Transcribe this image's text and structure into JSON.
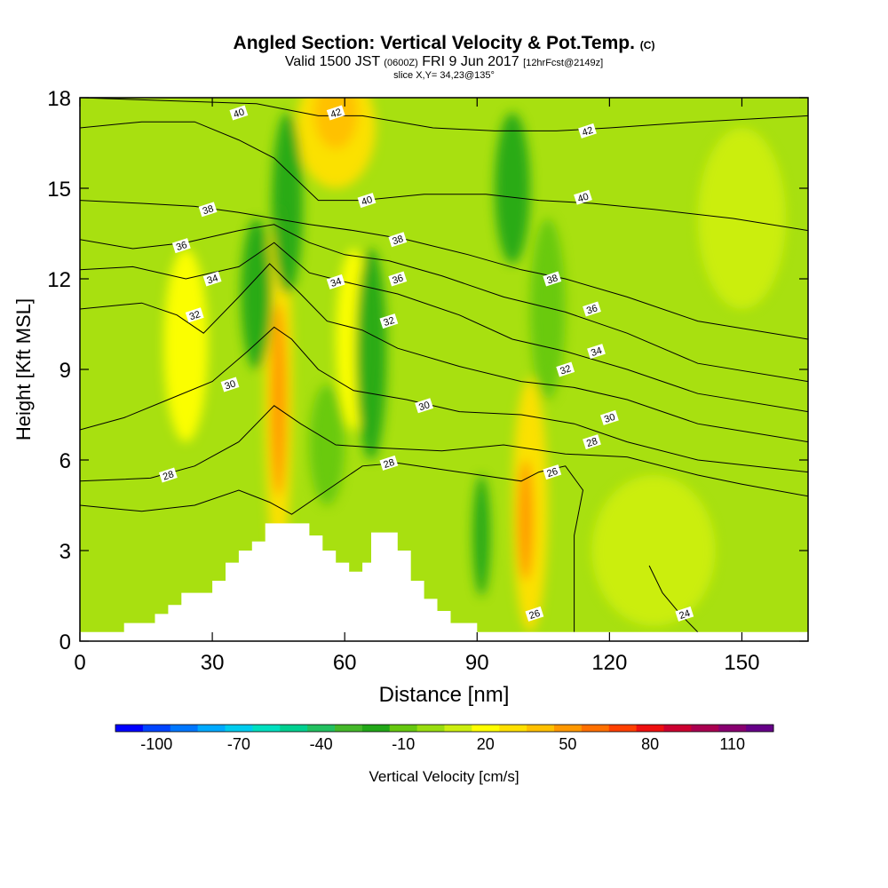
{
  "title": {
    "main": "Angled Section: Vertical Velocity & Pot.Temp.",
    "mark": "(C)"
  },
  "subtitle": {
    "a": "Valid 1500 JST",
    "b": "(0600Z)",
    "c": "FRI 9 Jun 2017",
    "d": "[12hrFcst@2149z]"
  },
  "slice_label": "slice X,Y= 34,23@135°",
  "chart_data": {
    "type": "heatmap",
    "xlabel": "Distance [nm]",
    "ylabel": "Height [Kft MSL]",
    "xlim": [
      0,
      165
    ],
    "ylim": [
      0,
      18
    ],
    "xticks": [
      0,
      30,
      60,
      90,
      120,
      150
    ],
    "yticks": [
      0,
      3,
      6,
      9,
      12,
      15,
      18
    ],
    "colorbar": {
      "label": "Vertical Velocity [cm/s]",
      "tick_values": [
        -100,
        -70,
        -40,
        -10,
        20,
        50,
        80,
        110
      ],
      "colors": [
        "#0000ff",
        "#0044ff",
        "#0077ff",
        "#00aaff",
        "#00ccee",
        "#00e0c0",
        "#00d090",
        "#22c060",
        "#44b82a",
        "#22a818",
        "#66c810",
        "#99dd10",
        "#ccee10",
        "#ffff00",
        "#ffe000",
        "#ffc000",
        "#ff9800",
        "#ff7000",
        "#ff4000",
        "#ee1010",
        "#cc0030",
        "#aa0050",
        "#880070",
        "#660088"
      ]
    },
    "terrain": [
      [
        0,
        0.3
      ],
      [
        10,
        0.3
      ],
      [
        10,
        0.6
      ],
      [
        17,
        0.6
      ],
      [
        17,
        0.9
      ],
      [
        20,
        0.9
      ],
      [
        20,
        1.2
      ],
      [
        23,
        1.2
      ],
      [
        23,
        1.6
      ],
      [
        30,
        1.6
      ],
      [
        30,
        2.0
      ],
      [
        33,
        2.0
      ],
      [
        33,
        2.6
      ],
      [
        36,
        2.6
      ],
      [
        36,
        3.0
      ],
      [
        39,
        3.0
      ],
      [
        39,
        3.3
      ],
      [
        42,
        3.3
      ],
      [
        42,
        3.9
      ],
      [
        52,
        3.9
      ],
      [
        52,
        3.5
      ],
      [
        55,
        3.5
      ],
      [
        55,
        3.0
      ],
      [
        58,
        3.0
      ],
      [
        58,
        2.6
      ],
      [
        61,
        2.6
      ],
      [
        61,
        2.3
      ],
      [
        64,
        2.3
      ],
      [
        64,
        2.6
      ],
      [
        66,
        2.6
      ],
      [
        66,
        3.6
      ],
      [
        72,
        3.6
      ],
      [
        72,
        3.0
      ],
      [
        75,
        3.0
      ],
      [
        75,
        2.0
      ],
      [
        78,
        2.0
      ],
      [
        78,
        1.4
      ],
      [
        81,
        1.4
      ],
      [
        81,
        1.0
      ],
      [
        84,
        1.0
      ],
      [
        84,
        0.6
      ],
      [
        90,
        0.6
      ],
      [
        90,
        0.3
      ],
      [
        165,
        0.3
      ]
    ],
    "theta_contours": [
      {
        "label": "24",
        "points": [
          [
            129,
            2.5
          ],
          [
            132,
            1.6
          ],
          [
            136,
            0.9
          ],
          [
            140,
            0.3
          ]
        ],
        "label_at": [
          137,
          0.9
        ]
      },
      {
        "label": "26",
        "points": [
          [
            0,
            4.5
          ],
          [
            14,
            4.3
          ],
          [
            26,
            4.5
          ],
          [
            36,
            5.0
          ],
          [
            43,
            4.6
          ],
          [
            48,
            4.2
          ],
          [
            56,
            5.0
          ],
          [
            64,
            5.8
          ],
          [
            72,
            5.9
          ],
          [
            86,
            5.6
          ],
          [
            100,
            5.3
          ],
          [
            104,
            5.6
          ],
          [
            110,
            5.8
          ],
          [
            114,
            5.0
          ],
          [
            112,
            3.5
          ],
          [
            112,
            2.5
          ],
          [
            112,
            1.2
          ],
          [
            112,
            0.3
          ]
        ],
        "label_at": [
          107,
          5.6
        ]
      },
      {
        "label": "28",
        "points": [
          [
            0,
            5.3
          ],
          [
            16,
            5.4
          ],
          [
            26,
            5.8
          ],
          [
            36,
            6.6
          ],
          [
            44,
            7.8
          ],
          [
            50,
            7.2
          ],
          [
            58,
            6.5
          ],
          [
            68,
            6.4
          ],
          [
            82,
            6.3
          ],
          [
            96,
            6.5
          ],
          [
            110,
            6.2
          ],
          [
            124,
            6.1
          ],
          [
            140,
            5.5
          ],
          [
            150,
            5.2
          ],
          [
            165,
            4.8
          ]
        ],
        "label_at": [
          116,
          6.6
        ]
      },
      {
        "label": "30",
        "points": [
          [
            0,
            7.0
          ],
          [
            10,
            7.4
          ],
          [
            20,
            8.0
          ],
          [
            30,
            8.6
          ],
          [
            38,
            9.6
          ],
          [
            44,
            10.4
          ],
          [
            48,
            10.0
          ],
          [
            54,
            9.0
          ],
          [
            62,
            8.3
          ],
          [
            74,
            8.0
          ],
          [
            86,
            7.6
          ],
          [
            100,
            7.5
          ],
          [
            112,
            7.2
          ],
          [
            124,
            6.6
          ],
          [
            140,
            6.0
          ],
          [
            165,
            5.6
          ]
        ],
        "label_at": [
          120,
          7.4
        ]
      },
      {
        "label": "32",
        "points": [
          [
            0,
            11.0
          ],
          [
            14,
            11.2
          ],
          [
            22,
            10.8
          ],
          [
            28,
            10.2
          ],
          [
            36,
            11.4
          ],
          [
            43,
            12.5
          ],
          [
            50,
            11.5
          ],
          [
            56,
            10.6
          ],
          [
            64,
            10.3
          ],
          [
            72,
            9.7
          ],
          [
            86,
            9.1
          ],
          [
            100,
            8.6
          ],
          [
            112,
            8.4
          ],
          [
            124,
            8.0
          ],
          [
            140,
            7.2
          ],
          [
            165,
            6.6
          ]
        ],
        "label_at": [
          110,
          9.0
        ]
      },
      {
        "label": "34",
        "points": [
          [
            0,
            12.3
          ],
          [
            12,
            12.4
          ],
          [
            24,
            12.0
          ],
          [
            36,
            12.4
          ],
          [
            44,
            13.2
          ],
          [
            52,
            12.2
          ],
          [
            60,
            11.9
          ],
          [
            72,
            11.5
          ],
          [
            86,
            10.8
          ],
          [
            98,
            10.0
          ],
          [
            110,
            9.6
          ],
          [
            124,
            9.0
          ],
          [
            140,
            8.2
          ],
          [
            165,
            7.6
          ]
        ],
        "label_at": [
          117,
          9.6
        ]
      },
      {
        "label": "36",
        "points": [
          [
            0,
            13.3
          ],
          [
            12,
            13.0
          ],
          [
            24,
            13.2
          ],
          [
            36,
            13.6
          ],
          [
            44,
            13.8
          ],
          [
            52,
            13.2
          ],
          [
            60,
            12.8
          ],
          [
            70,
            12.6
          ],
          [
            82,
            12.1
          ],
          [
            96,
            11.4
          ],
          [
            110,
            10.9
          ],
          [
            124,
            10.2
          ],
          [
            140,
            9.2
          ],
          [
            165,
            8.6
          ]
        ],
        "label_at": [
          116,
          11.0
        ]
      },
      {
        "label": "38",
        "points": [
          [
            0,
            14.6
          ],
          [
            14,
            14.5
          ],
          [
            26,
            14.4
          ],
          [
            36,
            14.2
          ],
          [
            44,
            14.0
          ],
          [
            52,
            13.8
          ],
          [
            62,
            13.6
          ],
          [
            74,
            13.3
          ],
          [
            88,
            12.8
          ],
          [
            100,
            12.3
          ],
          [
            110,
            12.0
          ],
          [
            124,
            11.4
          ],
          [
            140,
            10.6
          ],
          [
            165,
            10.0
          ]
        ],
        "label_at": [
          107,
          12.0
        ]
      },
      {
        "label": "40",
        "points": [
          [
            0,
            17.0
          ],
          [
            14,
            17.2
          ],
          [
            26,
            17.2
          ],
          [
            36,
            16.6
          ],
          [
            44,
            16.0
          ],
          [
            54,
            14.6
          ],
          [
            64,
            14.6
          ],
          [
            78,
            14.8
          ],
          [
            92,
            14.8
          ],
          [
            104,
            14.6
          ],
          [
            116,
            14.5
          ],
          [
            130,
            14.3
          ],
          [
            148,
            14.0
          ],
          [
            165,
            13.6
          ]
        ],
        "label_at": [
          114,
          14.7
        ]
      },
      {
        "label": "42",
        "points": [
          [
            0,
            18.0
          ],
          [
            40,
            17.8
          ],
          [
            54,
            17.4
          ],
          [
            64,
            17.4
          ],
          [
            80,
            17.0
          ],
          [
            94,
            16.9
          ],
          [
            108,
            16.9
          ],
          [
            120,
            17.0
          ],
          [
            140,
            17.2
          ],
          [
            165,
            17.4
          ]
        ],
        "label_at": [
          115,
          16.9
        ]
      }
    ],
    "extra_theta_labels": [
      {
        "label": "40",
        "at": [
          36,
          17.5
        ]
      },
      {
        "label": "42",
        "at": [
          58,
          17.5
        ]
      },
      {
        "label": "38",
        "at": [
          29,
          14.3
        ]
      },
      {
        "label": "40",
        "at": [
          65,
          14.6
        ]
      },
      {
        "label": "36",
        "at": [
          23,
          13.1
        ]
      },
      {
        "label": "38",
        "at": [
          72,
          13.3
        ]
      },
      {
        "label": "34",
        "at": [
          30,
          12.0
        ]
      },
      {
        "label": "34",
        "at": [
          58,
          11.9
        ]
      },
      {
        "label": "36",
        "at": [
          72,
          12.0
        ]
      },
      {
        "label": "32",
        "at": [
          26,
          10.8
        ]
      },
      {
        "label": "32",
        "at": [
          70,
          10.6
        ]
      },
      {
        "label": "30",
        "at": [
          34,
          8.5
        ]
      },
      {
        "label": "30",
        "at": [
          78,
          7.8
        ]
      },
      {
        "label": "28",
        "at": [
          20,
          5.5
        ]
      },
      {
        "label": "28",
        "at": [
          70,
          5.9
        ]
      },
      {
        "label": "26",
        "at": [
          103,
          0.9
        ]
      }
    ],
    "velocity_blobs": [
      {
        "cx": 45,
        "cy": 8.5,
        "rx": 3.2,
        "ry": 6.0,
        "value": 30
      },
      {
        "cx": 45,
        "cy": 8.0,
        "rx": 1.8,
        "ry": 3.2,
        "value": 50
      },
      {
        "cx": 58,
        "cy": 17.0,
        "rx": 9.0,
        "ry": 2.0,
        "value": 30
      },
      {
        "cx": 58,
        "cy": 17.5,
        "rx": 5.0,
        "ry": 1.2,
        "value": 40
      },
      {
        "cx": 102,
        "cy": 4.5,
        "rx": 4.0,
        "ry": 4.2,
        "value": 30
      },
      {
        "cx": 101,
        "cy": 4.0,
        "rx": 1.8,
        "ry": 2.0,
        "value": 45
      },
      {
        "cx": 24,
        "cy": 9.8,
        "rx": 5.0,
        "ry": 3.2,
        "value": 20
      },
      {
        "cx": 62,
        "cy": 10.0,
        "rx": 4.0,
        "ry": 3.0,
        "value": 15
      },
      {
        "cx": 40,
        "cy": 11.5,
        "rx": 3.5,
        "ry": 2.5,
        "value": -25
      },
      {
        "cx": 47,
        "cy": 14.5,
        "rx": 3.5,
        "ry": 3.0,
        "value": -25
      },
      {
        "cx": 66,
        "cy": 9.5,
        "rx": 3.5,
        "ry": 3.5,
        "value": -20
      },
      {
        "cx": 56,
        "cy": 6.5,
        "rx": 4.0,
        "ry": 2.0,
        "value": -15
      },
      {
        "cx": 98,
        "cy": 15.0,
        "rx": 4.0,
        "ry": 2.5,
        "value": -25
      },
      {
        "cx": 106,
        "cy": 11.0,
        "rx": 4.0,
        "ry": 3.0,
        "value": -15
      },
      {
        "cx": 91,
        "cy": 3.5,
        "rx": 2.0,
        "ry": 2.0,
        "value": -25
      },
      {
        "cx": 130,
        "cy": 3.0,
        "rx": 14.0,
        "ry": 2.5,
        "value": 5
      },
      {
        "cx": 150,
        "cy": 14.0,
        "rx": 10.0,
        "ry": 3.0,
        "value": 10
      }
    ]
  }
}
